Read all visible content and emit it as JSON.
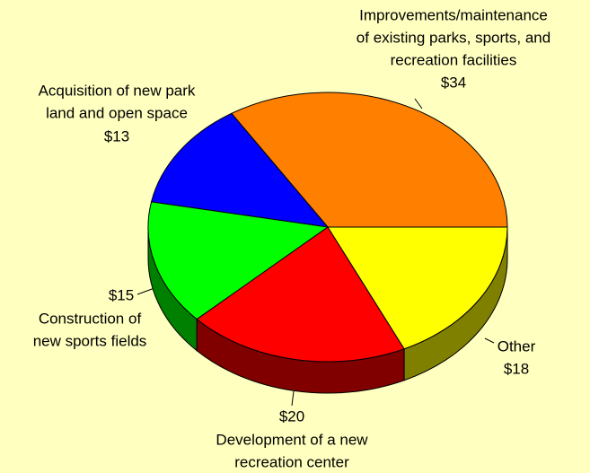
{
  "chart_data": {
    "type": "pie",
    "categories": [
      [
        "Improvements/maintenance",
        "of existing parks, sports, and",
        "recreation facilities"
      ],
      [
        "Acquisition of new park",
        "land and open space"
      ],
      [
        "Construction of",
        "new sports fields"
      ],
      [
        "Development of a new",
        "recreation center"
      ],
      [
        "Other"
      ]
    ],
    "values": [
      34,
      13,
      15,
      20,
      18
    ],
    "value_labels": [
      "$34",
      "$13",
      "$15",
      "$20",
      "$18"
    ],
    "colors": [
      "#ff8000",
      "#0000ff",
      "#00ff00",
      "#ff0000",
      "#ffff00"
    ]
  }
}
